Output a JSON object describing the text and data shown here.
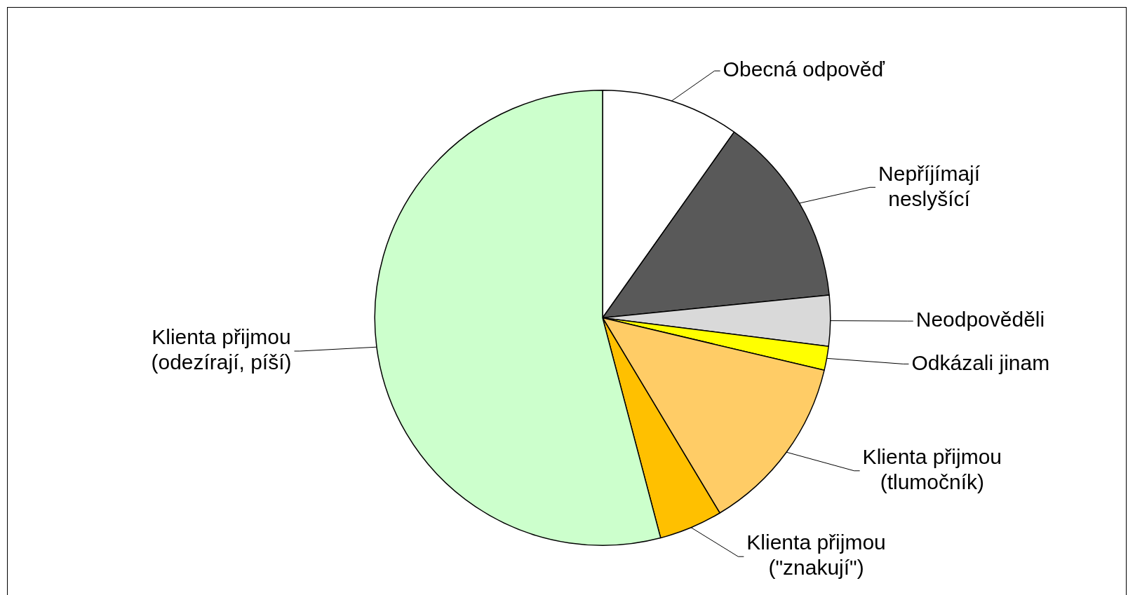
{
  "chart_data": {
    "type": "pie",
    "categories": [
      "Obecná odpověď",
      "Nepříjímají neslyšící",
      "Neodpověděli",
      "Odkázali jinam",
      "Klienta přijmou (tlumočník)",
      "Klienta přijmou (\"znakují\")",
      "Klienta přijmou (odezírají, píší)"
    ],
    "values": [
      9.8,
      13.6,
      3.6,
      1.7,
      12.7,
      4.5,
      54.1
    ],
    "colors": [
      "#ffffff",
      "#595959",
      "#d9d9d9",
      "#ffff00",
      "#ffcc66",
      "#ffc000",
      "#ccffcc"
    ],
    "legend": false
  }
}
